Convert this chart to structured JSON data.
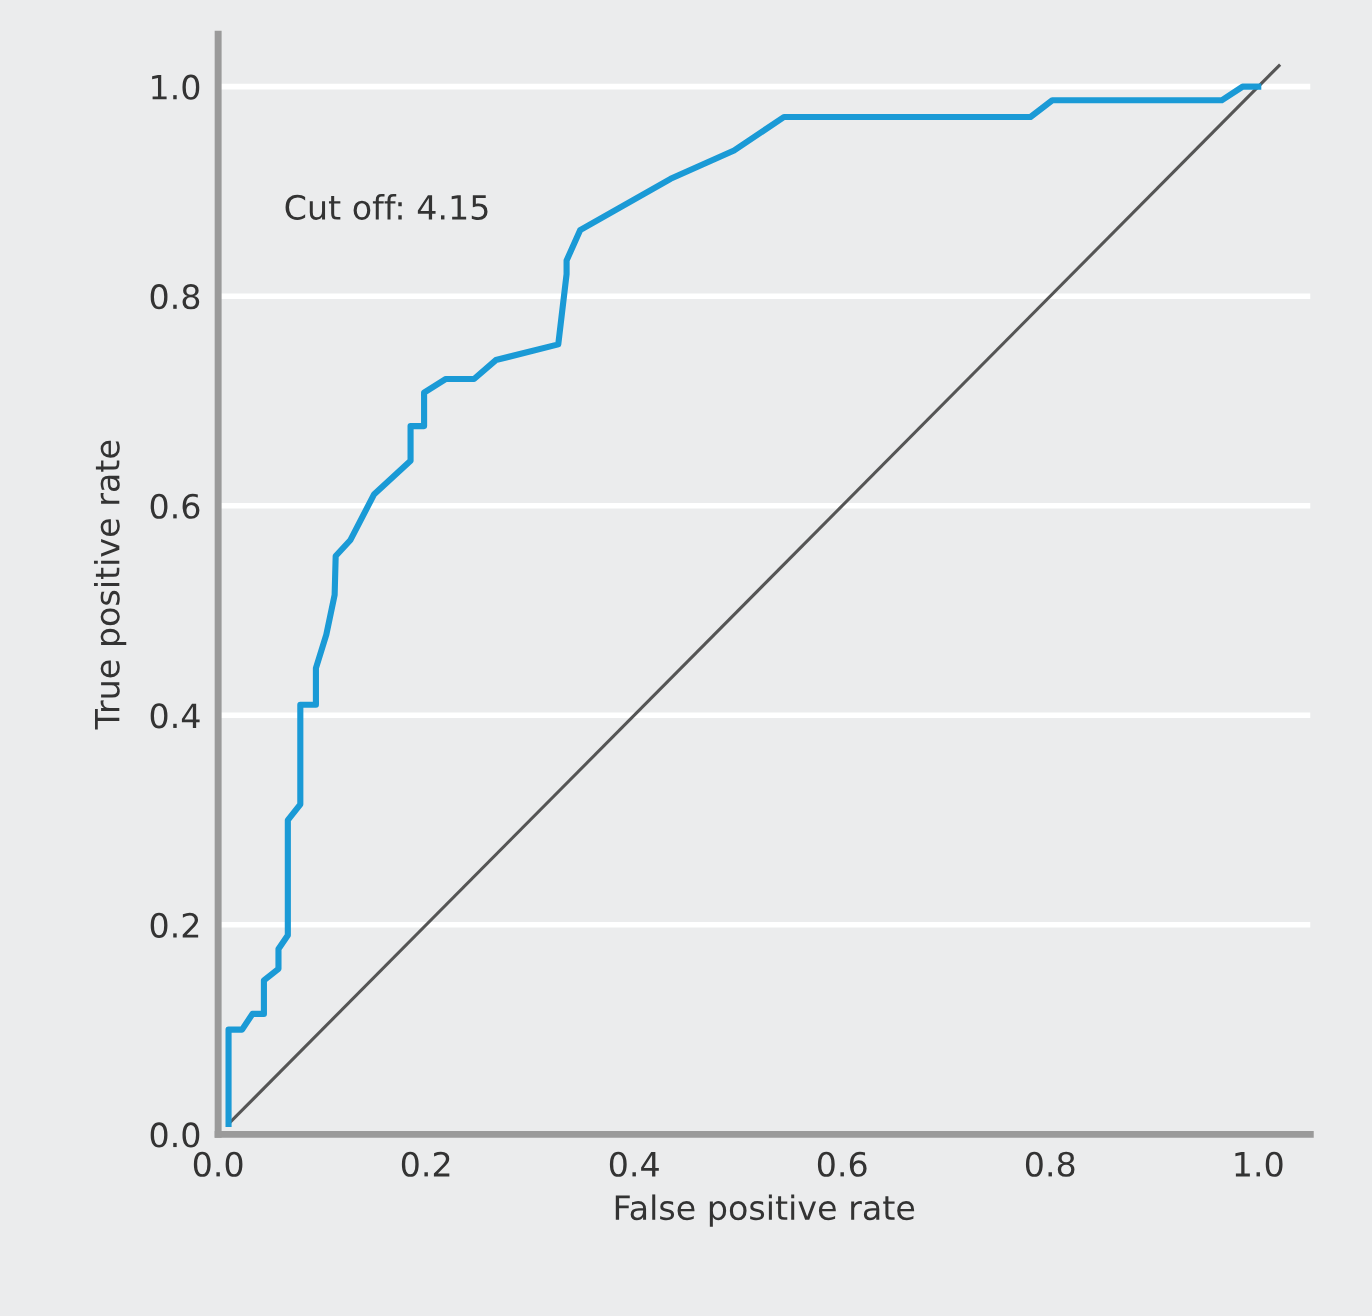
{
  "chart_data": {
    "type": "line",
    "xlabel": "False positive rate",
    "ylabel": "True positive rate",
    "annotations": [
      "Cut off: 4.15"
    ],
    "xlim": [
      0,
      1.05
    ],
    "ylim": [
      0,
      1.05
    ],
    "xticks": [
      {
        "value": 0,
        "label": "0.0"
      },
      0.2,
      0.4,
      0.6,
      0.8,
      {
        "value": 1,
        "label": "1.0"
      }
    ],
    "yticks": [
      {
        "value": 0,
        "label": "0.0"
      },
      0.2,
      0.4,
      0.6,
      0.8,
      {
        "value": 1,
        "label": "1.0"
      }
    ],
    "grid": "y",
    "legend": false,
    "marker": "none",
    "line_style": "solid",
    "series": [
      {
        "color": "#1a9ad6",
        "x": [
          0.01,
          0.01,
          0.023,
          0.033,
          0.044,
          0.044,
          0.058,
          0.058,
          0.067,
          0.067,
          0.079,
          0.079,
          0.094,
          0.094,
          0.104,
          0.112,
          0.113,
          0.127,
          0.15,
          0.185,
          0.185,
          0.198,
          0.198,
          0.219,
          0.246,
          0.267,
          0.327,
          0.335,
          0.335,
          0.348,
          0.435,
          0.496,
          0.544,
          0.781,
          0.802,
          0.965,
          0.985,
          1.0
        ],
        "values": [
          0.01,
          0.1,
          0.1,
          0.115,
          0.115,
          0.147,
          0.158,
          0.177,
          0.19,
          0.3,
          0.315,
          0.41,
          0.41,
          0.445,
          0.477,
          0.515,
          0.552,
          0.567,
          0.611,
          0.643,
          0.676,
          0.676,
          0.708,
          0.721,
          0.721,
          0.739,
          0.754,
          0.821,
          0.834,
          0.863,
          0.912,
          0.939,
          0.971,
          0.971,
          0.987,
          0.987,
          1.0,
          1.0
        ]
      },
      {
        "color": "#555555",
        "x": [
          0.01,
          1.02
        ],
        "values": [
          0.01,
          1.02
        ]
      }
    ]
  }
}
